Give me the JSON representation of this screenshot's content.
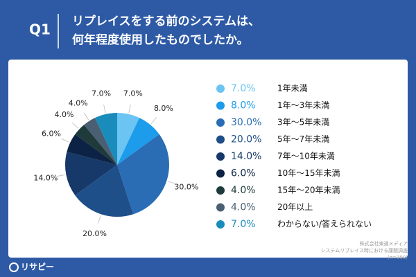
{
  "header": {
    "question": "Q1",
    "title": [
      "リプレイスをする前のシステムは、",
      "何年程度使用したものでしたか。"
    ]
  },
  "chart_data": {
    "type": "pie",
    "categories": [
      "1年未満",
      "1年〜3年未満",
      "3年〜5年未満",
      "5年〜7年未満",
      "7年〜10年未満",
      "10年〜15年未満",
      "15年〜20年未満",
      "20年以上",
      "わからない/答えられない"
    ],
    "values": [
      7,
      8,
      30,
      20,
      14,
      6,
      4,
      4,
      7
    ],
    "value_labels": [
      "7.0%",
      "8.0%",
      "30.0%",
      "20.0%",
      "14.0%",
      "6.0%",
      "4.0%",
      "4.0%",
      "7.0%"
    ],
    "colors": [
      "#6cc4f2",
      "#1d9cec",
      "#2a6db5",
      "#1f4f89",
      "#17396a",
      "#0d2345",
      "#1e3a3b",
      "#4a5f71",
      "#1a8cbc"
    ],
    "legend": "right"
  },
  "source": [
    "株式会社東通メディア",
    "システムリプレイス時における課題調査",
    "(n=100)"
  ],
  "logo": "リサピー"
}
